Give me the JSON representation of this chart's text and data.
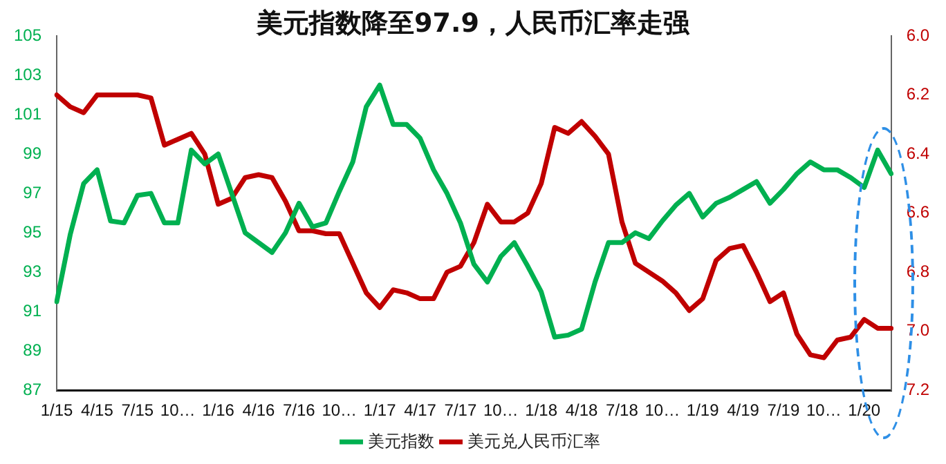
{
  "chart_data": {
    "type": "line",
    "title": "美元指数降至97.9，人民币汇率走强",
    "categories": [
      "1/15",
      null,
      null,
      "4/15",
      null,
      null,
      "7/15",
      null,
      null,
      "10…",
      null,
      null,
      "1/16",
      null,
      null,
      "4/16",
      null,
      null,
      "7/16",
      null,
      null,
      "10…",
      null,
      null,
      "1/17",
      null,
      null,
      "4/17",
      null,
      null,
      "7/17",
      null,
      null,
      "10…",
      null,
      null,
      "1/18",
      null,
      null,
      "4/18",
      null,
      null,
      "7/18",
      null,
      null,
      "10…",
      null,
      null,
      "1/19",
      null,
      null,
      "4/19",
      null,
      null,
      "7/19",
      null,
      null,
      "10…",
      null,
      null,
      "1/20",
      null,
      null
    ],
    "series": [
      {
        "name": "美元指数",
        "color": "#00b050",
        "values": [
          91.5,
          94.9,
          97.5,
          98.2,
          95.6,
          95.5,
          96.9,
          97,
          95.5,
          95.5,
          99.2,
          98.5,
          99,
          97,
          95,
          94.5,
          94,
          95,
          96.5,
          95.3,
          95.5,
          97.1,
          98.6,
          101.4,
          102.5,
          100.5,
          100.5,
          99.8,
          98.2,
          97,
          95.5,
          93.4,
          92.5,
          93.8,
          94.5,
          93.3,
          92,
          89.7,
          89.8,
          90.1,
          92.5,
          94.5,
          94.5,
          95,
          94.7,
          95.6,
          96.4,
          97,
          95.8,
          96.5,
          96.8,
          97.2,
          97.6,
          96.5,
          97.2,
          98,
          98.6,
          98.2,
          98.2,
          97.8,
          97.3,
          99.2,
          98.0
        ]
      },
      {
        "name": "美元兑人民币汇率",
        "color": "#c00000",
        "axis": "y2",
        "values": [
          6.2,
          6.24,
          6.26,
          6.2,
          6.2,
          6.2,
          6.2,
          6.21,
          6.37,
          6.35,
          6.33,
          6.4,
          6.57,
          6.55,
          6.48,
          6.47,
          6.48,
          6.56,
          6.66,
          6.66,
          6.67,
          6.67,
          6.77,
          6.87,
          6.92,
          6.86,
          6.87,
          6.89,
          6.89,
          6.8,
          6.78,
          6.7,
          6.57,
          6.63,
          6.63,
          6.6,
          6.5,
          6.31,
          6.33,
          6.29,
          6.34,
          6.4,
          6.63,
          6.77,
          6.8,
          6.83,
          6.87,
          6.93,
          6.89,
          6.76,
          6.72,
          6.71,
          6.8,
          6.9,
          6.87,
          7.01,
          7.08,
          7.09,
          7.03,
          7.02,
          6.96,
          6.99,
          6.99
        ]
      }
    ],
    "ylim": [
      87,
      105
    ],
    "yticks": [
      87,
      89,
      91,
      93,
      95,
      97,
      99,
      101,
      103,
      105
    ],
    "y2lim": [
      7.2,
      6.0
    ],
    "y2ticks": [
      {
        "value": 7.2,
        "label": "7.2"
      },
      {
        "value": 7,
        "label": "7.0"
      },
      {
        "value": 6.8,
        "label": "6.8"
      },
      {
        "value": 6.6,
        "label": "6.6"
      },
      {
        "value": 6.4,
        "label": "6.4"
      },
      {
        "value": 6.2,
        "label": "6.2"
      },
      {
        "value": 6,
        "label": "6.0"
      }
    ],
    "grid": false,
    "legend": "bottom",
    "marker": "none",
    "line_style": "solid"
  }
}
